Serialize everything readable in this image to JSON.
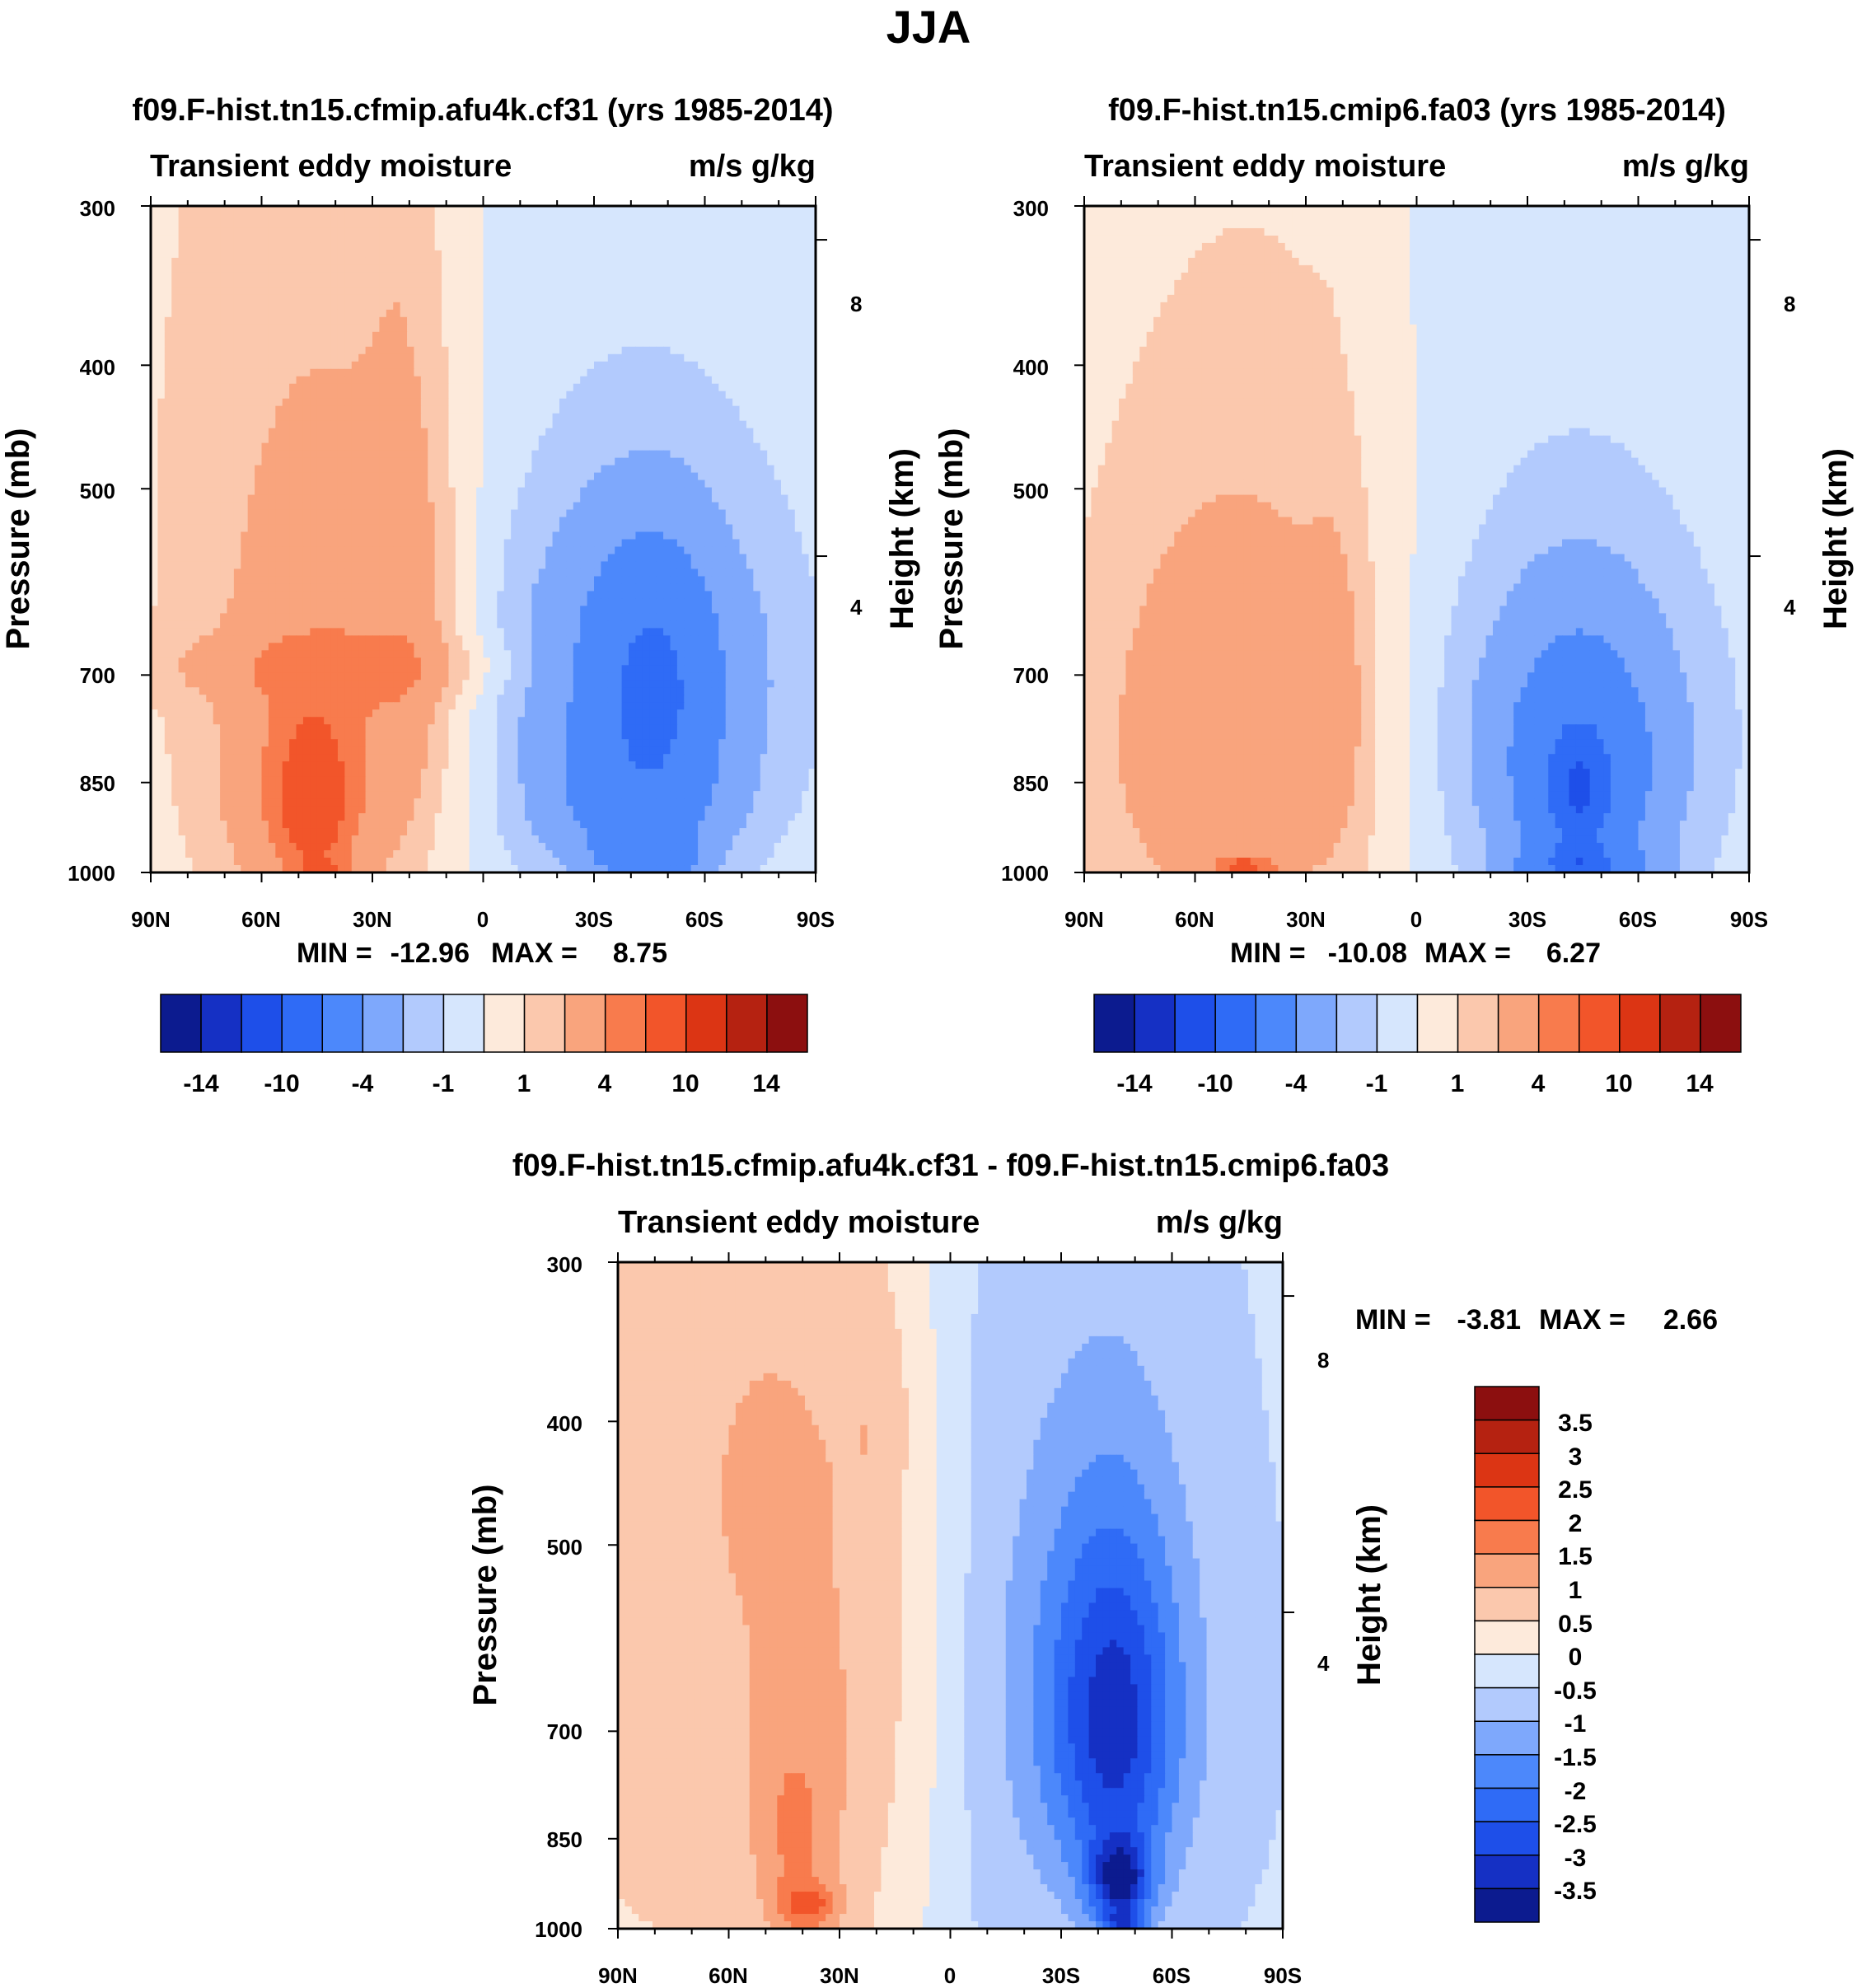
{
  "page": {
    "title": "JJA"
  },
  "colors": {
    "bins": [
      "#0c1b8f",
      "#1530c4",
      "#1e4fe9",
      "#2f6bf6",
      "#4c88fb",
      "#7ea8fc",
      "#b2cafd",
      "#d6e6fd",
      "#fdeadb",
      "#fbc8ad",
      "#f9a47d",
      "#f87b4d",
      "#f2552a",
      "#dc3514",
      "#b52211",
      "#8c0f0f"
    ],
    "diff_bins": [
      "#0c1b8f",
      "#1530c4",
      "#1e4fe9",
      "#2f6bf6",
      "#4c88fb",
      "#7ea8fc",
      "#b2cafd",
      "#d6e6fd",
      "#fdeadb",
      "#fbc8ad",
      "#f9a47d",
      "#f87b4d",
      "#f2552a",
      "#dc3514",
      "#b52211",
      "#8c0f0f"
    ]
  },
  "chart_data": [
    {
      "id": "panel1",
      "type": "contour",
      "title": "f09.F-hist.tn15.cfmip.afu4k.cf31 (yrs 1985-2014)",
      "left_label": "Transient eddy moisture",
      "right_label": "m/s g/kg",
      "ylabel": "Pressure (mb)",
      "y2label": "Height (km)",
      "x_ticks": [
        "90N",
        "60N",
        "30N",
        "0",
        "30S",
        "60S",
        "90S"
      ],
      "x_range": [
        90,
        -90
      ],
      "y_ticks": [
        "300",
        "400",
        "500",
        "700",
        "850",
        "1000"
      ],
      "y_tick_values": [
        300,
        400,
        500,
        700,
        850,
        1000
      ],
      "y_range": [
        1000,
        300
      ],
      "y2_ticks": [
        "8",
        "4"
      ],
      "y2_tick_values": [
        8,
        4
      ],
      "stats": {
        "min_label": "MIN =",
        "min": "-12.96",
        "max_label": "MAX =",
        "max": "8.75"
      },
      "levels": [
        -14,
        -12,
        -10,
        -8,
        -4,
        -2,
        -1,
        0,
        1,
        2,
        4,
        6,
        10,
        12,
        14
      ],
      "colorbar_labels": [
        "-14",
        "-10",
        "-4",
        "-1",
        "1",
        "4",
        "10",
        "14"
      ],
      "blobs": [
        {
          "lat": 42,
          "p": 690,
          "a": 50,
          "b": 40,
          "v": 1.5
        },
        {
          "lat": 48,
          "p": 520,
          "a": 40,
          "b": 400,
          "v": 1.5
        },
        {
          "lat": 30,
          "p": 700,
          "a": 30,
          "b": 230,
          "v": 1.1
        },
        {
          "lat": 20,
          "p": 600,
          "a": 11,
          "b": 300,
          "v": 1.2
        },
        {
          "lat": 48,
          "p": 880,
          "a": 22,
          "b": 210,
          "v": 3.0
        },
        {
          "lat": 46,
          "p": 880,
          "a": 9,
          "b": 120,
          "v": 4.5
        },
        {
          "lat": 42,
          "p": 1000,
          "a": 7,
          "b": 20,
          "v": 3.0
        },
        {
          "lat": -42,
          "p": 700,
          "a": 36,
          "b": 220,
          "v": -4.0
        },
        {
          "lat": -40,
          "p": 900,
          "a": 25,
          "b": 110,
          "v": -3.0
        },
        {
          "lat": -46,
          "p": 720,
          "a": 15,
          "b": 150,
          "v": -5.0
        },
        {
          "lat": -45,
          "p": 980,
          "a": 13,
          "b": 40,
          "v": -4.0
        }
      ]
    },
    {
      "id": "panel2",
      "type": "contour",
      "title": "f09.F-hist.tn15.cmip6.fa03 (yrs 1985-2014)",
      "left_label": "Transient eddy moisture",
      "right_label": "m/s g/kg",
      "ylabel": "Pressure (mb)",
      "y2label": "Height (km)",
      "x_ticks": [
        "90N",
        "60N",
        "30N",
        "0",
        "30S",
        "60S",
        "90S"
      ],
      "x_range": [
        90,
        -90
      ],
      "y_ticks": [
        "300",
        "400",
        "500",
        "700",
        "850",
        "1000"
      ],
      "y_tick_values": [
        300,
        400,
        500,
        700,
        850,
        1000
      ],
      "y_range": [
        1000,
        300
      ],
      "y2_ticks": [
        "8",
        "4"
      ],
      "y2_tick_values": [
        8,
        4
      ],
      "stats": {
        "min_label": "MIN =",
        "min": "-10.08",
        "max_label": "MAX =",
        "max": "6.27"
      },
      "levels": [
        -14,
        -12,
        -10,
        -8,
        -4,
        -2,
        -1,
        0,
        1,
        2,
        4,
        6,
        10,
        12,
        14
      ],
      "colorbar_labels": [
        "-14",
        "-10",
        "-4",
        "-1",
        "1",
        "4",
        "10",
        "14"
      ],
      "blobs": [
        {
          "lat": 45,
          "p": 740,
          "a": 45,
          "b": 420,
          "v": 1.4
        },
        {
          "lat": 52,
          "p": 800,
          "a": 30,
          "b": 260,
          "v": 2.0
        },
        {
          "lat": 22,
          "p": 720,
          "a": 8,
          "b": 210,
          "v": 1.1
        },
        {
          "lat": 46,
          "p": 990,
          "a": 8,
          "b": 20,
          "v": 4.5
        },
        {
          "lat": -42,
          "p": 770,
          "a": 35,
          "b": 250,
          "v": -2.5
        },
        {
          "lat": -45,
          "p": 830,
          "a": 23,
          "b": 200,
          "v": -3.0
        },
        {
          "lat": -44,
          "p": 880,
          "a": 12,
          "b": 140,
          "v": -5.0
        },
        {
          "lat": -45,
          "p": 990,
          "a": 18,
          "b": 35,
          "v": -4.0
        }
      ]
    },
    {
      "id": "panel3",
      "type": "contour",
      "title": "f09.F-hist.tn15.cfmip.afu4k.cf31 - f09.F-hist.tn15.cmip6.fa03",
      "left_label": "Transient eddy moisture",
      "right_label": "m/s g/kg",
      "ylabel": "Pressure (mb)",
      "y2label": "Height (km)",
      "x_ticks": [
        "90N",
        "60N",
        "30N",
        "0",
        "30S",
        "60S",
        "90S"
      ],
      "x_range": [
        90,
        -90
      ],
      "y_ticks": [
        "300",
        "400",
        "500",
        "700",
        "850",
        "1000"
      ],
      "y_tick_values": [
        300,
        400,
        500,
        700,
        850,
        1000
      ],
      "y_range": [
        1000,
        300
      ],
      "y2_ticks": [
        "8",
        "4"
      ],
      "y2_tick_values": [
        8,
        4
      ],
      "stats": {
        "min_label": "MIN =",
        "min": "-3.81",
        "max_label": "MAX =",
        "max": "2.66"
      },
      "levels": [
        -3.5,
        -3,
        -2.5,
        -2,
        -1.5,
        -1,
        -0.5,
        0,
        0.5,
        1,
        1.5,
        2,
        2.5,
        3,
        3.5
      ],
      "colorbar_labels": [
        "3.5",
        "3",
        "2.5",
        "2",
        "1.5",
        "1",
        "0.5",
        "0",
        "-0.5",
        "-1",
        "-1.5",
        "-2",
        "-2.5",
        "-3",
        "-3.5"
      ],
      "blobs": [
        {
          "lat": 40,
          "p": 620,
          "a": 45,
          "b": 300,
          "v": 0.55
        },
        {
          "lat": 50,
          "p": 420,
          "a": 20,
          "b": 120,
          "v": 0.35
        },
        {
          "lat": 18,
          "p": 390,
          "a": 10,
          "b": 80,
          "v": 0.3
        },
        {
          "lat": 42,
          "p": 860,
          "a": 11,
          "b": 170,
          "v": 0.9
        },
        {
          "lat": 38,
          "p": 960,
          "a": 8,
          "b": 40,
          "v": 1.2
        },
        {
          "lat": -38,
          "p": 640,
          "a": 30,
          "b": 300,
          "v": -1.2
        },
        {
          "lat": -45,
          "p": 700,
          "a": 16,
          "b": 220,
          "v": -1.8
        },
        {
          "lat": -46,
          "p": 920,
          "a": 8,
          "b": 70,
          "v": -2.5
        },
        {
          "lat": -47,
          "p": 990,
          "a": 5,
          "b": 20,
          "v": -1.5
        }
      ]
    }
  ]
}
